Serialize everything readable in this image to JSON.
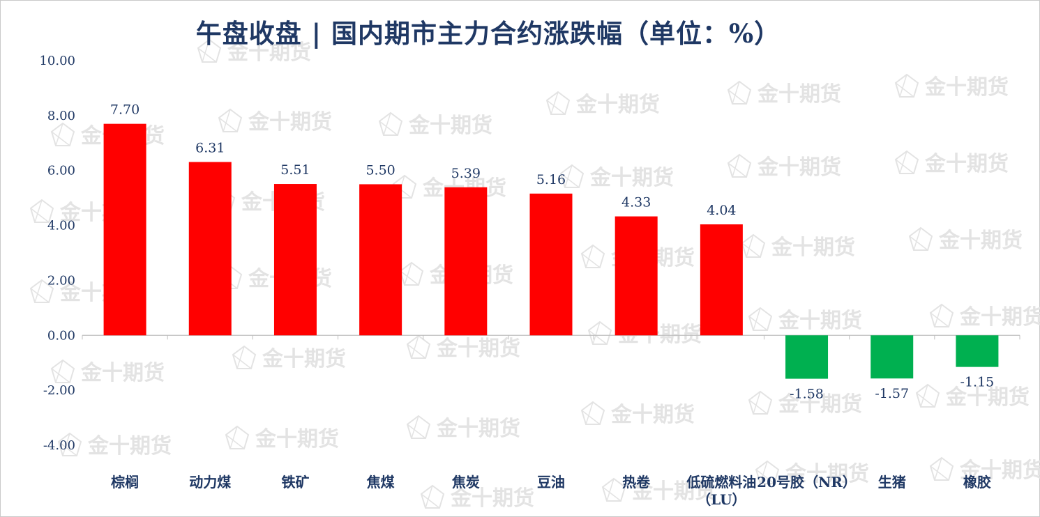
{
  "chart_data": {
    "type": "bar",
    "title": "午盘收盘 | 国内期市主力合约涨跌幅（单位：%）",
    "categories": [
      "棕榈",
      "动力煤",
      "铁矿",
      "焦煤",
      "焦炭",
      "豆油",
      "热卷",
      "低硫燃料油(LU)",
      "20号胶（NR）",
      "生猪",
      "橡胶"
    ],
    "category_lines": [
      [
        "棕榈"
      ],
      [
        "动力煤"
      ],
      [
        "铁矿"
      ],
      [
        "焦煤"
      ],
      [
        "焦炭"
      ],
      [
        "豆油"
      ],
      [
        "热卷"
      ],
      [
        "低硫燃料油",
        "（LU）"
      ],
      [
        "20号胶（NR）"
      ],
      [
        "生猪"
      ],
      [
        "橡胶"
      ]
    ],
    "values": [
      7.7,
      6.31,
      5.51,
      5.5,
      5.39,
      5.16,
      4.33,
      4.04,
      -1.58,
      -1.57,
      -1.15
    ],
    "value_labels": [
      "7.70",
      "6.31",
      "5.51",
      "5.50",
      "5.39",
      "5.16",
      "4.33",
      "4.04",
      "-1.58",
      "-1.57",
      "-1.15"
    ],
    "ylim": [
      -4,
      10
    ],
    "y_ticks": [
      10,
      8,
      6,
      4,
      2,
      0,
      -2,
      -4
    ],
    "y_tick_labels": [
      "10.00",
      "8.00",
      "6.00",
      "4.00",
      "2.00",
      "0.00",
      "-2.00",
      "-4.00"
    ],
    "xlabel": "",
    "ylabel": "",
    "grid": false,
    "legend": "none",
    "colors": {
      "positive": "#ff0000",
      "negative": "#00b050",
      "text": "#1f3864",
      "axis": "#bfbfbf"
    }
  },
  "watermark": {
    "text": "金十期货",
    "color": "#e3e3e3"
  }
}
